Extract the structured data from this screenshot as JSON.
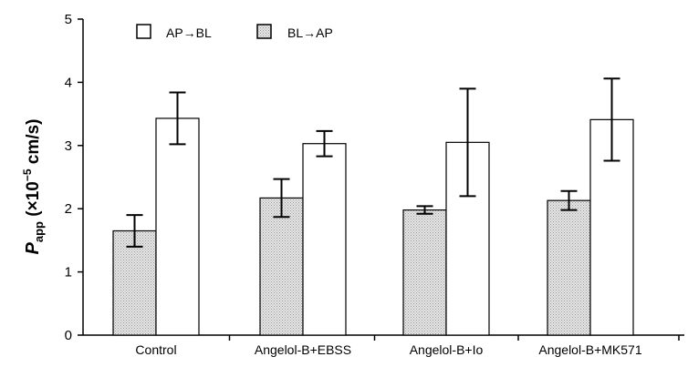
{
  "chart_data": {
    "type": "bar",
    "title": "",
    "xlabel": "",
    "ylabel": {
      "main": "P",
      "subscript": "app",
      "rest": " (×10",
      "superscript": "−5",
      "unit": " cm/s)"
    },
    "ylim": [
      0,
      5
    ],
    "yticks": [
      "0",
      "1",
      "2",
      "3",
      "4",
      "5"
    ],
    "grid": false,
    "legend_position": "top-left",
    "categories": [
      "Control",
      "Angelol-B+EBSS",
      "Angelol-B+Io",
      "Angelol-B+MK571"
    ],
    "series": [
      {
        "name": "BL→AP",
        "fill": "hatched-gray",
        "values": [
          1.65,
          2.17,
          1.98,
          2.13
        ],
        "errors": [
          0.25,
          0.3,
          0.06,
          0.15
        ]
      },
      {
        "name": "AP→BL",
        "fill": "white",
        "values": [
          3.43,
          3.03,
          3.05,
          3.41
        ],
        "errors": [
          0.41,
          0.2,
          0.85,
          0.65
        ]
      }
    ],
    "legend_order": [
      "AP→BL",
      "BL→AP"
    ],
    "colors": {
      "axis": "#000000",
      "bar_outline": "#000000",
      "hatched_fill": "#d9d9d9",
      "open_fill": "#ffffff"
    }
  }
}
